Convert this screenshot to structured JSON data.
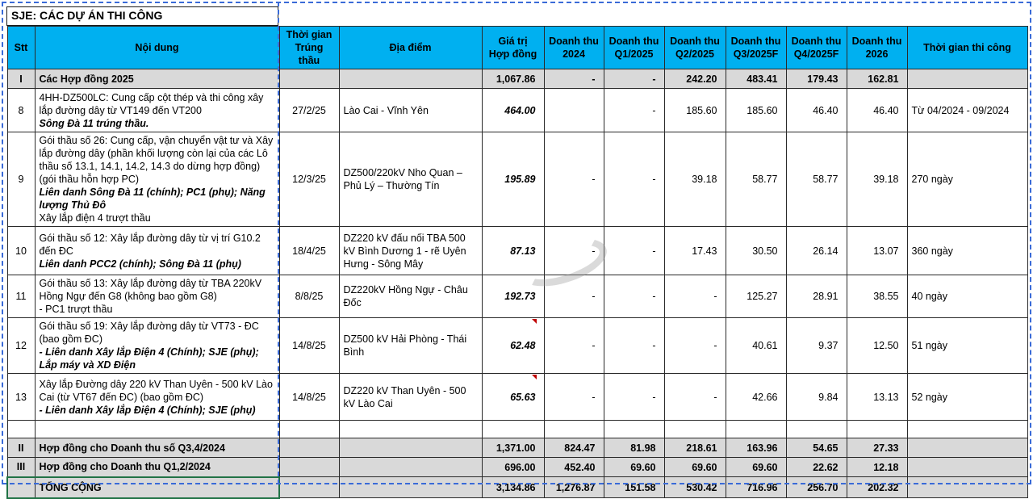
{
  "title": "SJE: CÁC DỰ ÁN THI CÔNG",
  "colors": {
    "header_bg": "#00B0F0",
    "summary_bg": "#D9D9D9",
    "ants": "#3A6BD8",
    "selection": "#217346",
    "marker": "#C00000"
  },
  "header": [
    "Stt",
    "Nội dung",
    "Thời gian\nTrúng thầu",
    "Địa điểm",
    "Giá trị\nHợp đồng",
    "Doanh thu\n2024",
    "Doanh thu\nQ1/2025",
    "Doanh thu\nQ2/2025",
    "Doanh thu\nQ3/2025F",
    "Doanh thu\nQ4/2025F",
    "Doanh thu\n2026",
    "Thời gian thi công"
  ],
  "rows": [
    {
      "type": "summary",
      "stt": "I",
      "content": [
        {
          "t": "Các Hợp đồng 2025",
          "s": "b"
        }
      ],
      "date": "",
      "location": "",
      "values": [
        "1,067.86",
        "-",
        "-",
        "242.20",
        "483.41",
        "179.43",
        "162.81"
      ],
      "duration": ""
    },
    {
      "type": "detail",
      "stt": "8",
      "content": [
        {
          "t": "4HH-DZ500LC: Cung cấp cột thép và thi công xây lắp đường dây từ VT149 đến VT200",
          "s": "n"
        },
        {
          "t": "Sông Đà 11 trúng thầu.",
          "s": "bi"
        }
      ],
      "date": "27/2/25",
      "location": "Lào Cai - Vĩnh Yên",
      "values": [
        "464.00",
        "",
        "-",
        "185.60",
        "185.60",
        "46.40",
        "46.40"
      ],
      "duration": "Từ 04/2024 - 09/2024"
    },
    {
      "type": "detail",
      "stt": "9",
      "content": [
        {
          "t": "Gói thầu số 26: Cung cấp, vận chuyển vật tư và Xây lắp đường dây (phần khối lượng còn lại của các Lô thầu số 13.1, 14.1, 14.2, 14.3 do dừng hợp đồng) (gói thầu hỗn hợp PC)",
          "s": "n"
        },
        {
          "t": "Liên danh Sông Đà 11 (chính); PC1 (phụ); Năng lượng Thủ Đô",
          "s": "bi"
        },
        {
          "t": "Xây lắp điện 4 trượt thầu",
          "s": "n"
        }
      ],
      "date": "12/3/25",
      "location": "DZ500/220kV Nho Quan – Phủ Lý – Thường Tín",
      "values": [
        "195.89",
        "-",
        "-",
        "39.18",
        "58.77",
        "58.77",
        "39.18"
      ],
      "duration": "270 ngày"
    },
    {
      "type": "detail",
      "stt": "10",
      "content": [
        {
          "t": "Gói thầu số 12: Xây lắp đường dây từ vị trí G10.2 đến ĐC",
          "s": "n"
        },
        {
          "t": "Liên danh PCC2 (chính); Sông Đà 11 (phụ)",
          "s": "bi"
        }
      ],
      "date": "18/4/25",
      "location": "DZ220 kV đấu nối TBA 500 kV Bình Dương 1 - rẽ Uyên Hưng - Sông Mây",
      "values": [
        "87.13",
        "-",
        "-",
        "17.43",
        "30.50",
        "26.14",
        "13.07"
      ],
      "duration": "360 ngày"
    },
    {
      "type": "detail",
      "stt": "11",
      "content": [
        {
          "t": "Gói thầu số 13: Xây lắp đường dây từ TBA 220kV Hồng Ngự đến G8 (không bao gồm G8)",
          "s": "n"
        },
        {
          "t": "- PC1 trượt thầu",
          "s": "n"
        }
      ],
      "date": "8/8/25",
      "location": "DZ220kV Hồng Ngự - Châu Đốc",
      "values": [
        "192.73",
        "-",
        "-",
        "-",
        "125.27",
        "28.91",
        "38.55"
      ],
      "duration": "40 ngày"
    },
    {
      "type": "detail",
      "stt": "12",
      "marker": true,
      "content": [
        {
          "t": "Gói thầu số 19: Xây lắp đường dây từ VT73 - ĐC (bao gồm ĐC)",
          "s": "n"
        },
        {
          "t": "- Liên danh Xây lắp Điện 4 (Chính); SJE (phụ); Lắp máy và XD Điện",
          "s": "bi"
        }
      ],
      "date": "14/8/25",
      "location": "DZ500 kV Hải Phòng - Thái Bình",
      "values": [
        "62.48",
        "-",
        "-",
        "-",
        "40.61",
        "9.37",
        "12.50"
      ],
      "duration": "51 ngày"
    },
    {
      "type": "detail",
      "stt": "13",
      "marker": true,
      "content": [
        {
          "t": "Xây lắp Đường dây 220 kV Than Uyên - 500 kV Lào Cai (từ VT67 đến ĐC) (bao gồm ĐC)",
          "s": "n"
        },
        {
          "t": "- Liên danh Xây lắp Điện 4 (Chính); SJE (phụ)",
          "s": "bi"
        }
      ],
      "date": "14/8/25",
      "location": "DZ220 kV Than Uyên - 500 kV Lào Cai",
      "values": [
        "65.63",
        "-",
        "-",
        "-",
        "42.66",
        "9.84",
        "13.13"
      ],
      "duration": "52 ngày"
    },
    {
      "type": "spacer",
      "stt": "",
      "content": [],
      "date": "",
      "location": "",
      "values": [
        "",
        "",
        "",
        "",
        "",
        "",
        ""
      ],
      "duration": ""
    },
    {
      "type": "summary",
      "stt": "II",
      "content": [
        {
          "t": "Hợp đồng cho Doanh thu số Q3,4/2024",
          "s": "b"
        }
      ],
      "date": "",
      "location": "",
      "values": [
        "1,371.00",
        "824.47",
        "81.98",
        "218.61",
        "163.96",
        "54.65",
        "27.33"
      ],
      "duration": ""
    },
    {
      "type": "summary",
      "stt": "III",
      "content": [
        {
          "t": "Hợp đồng cho Doanh thu Q1,2/2024",
          "s": "b"
        }
      ],
      "date": "",
      "location": "",
      "values": [
        "696.00",
        "452.40",
        "69.60",
        "69.60",
        "69.60",
        "22.62",
        "12.18"
      ],
      "duration": ""
    },
    {
      "type": "total",
      "stt": "",
      "content": [
        {
          "t": "TỔNG CỘNG",
          "s": "b"
        }
      ],
      "date": "",
      "location": "",
      "values": [
        "3,134.86",
        "1,276.87",
        "151.58",
        "530.42",
        "716.96",
        "256.70",
        "202.32"
      ],
      "duration": ""
    }
  ]
}
